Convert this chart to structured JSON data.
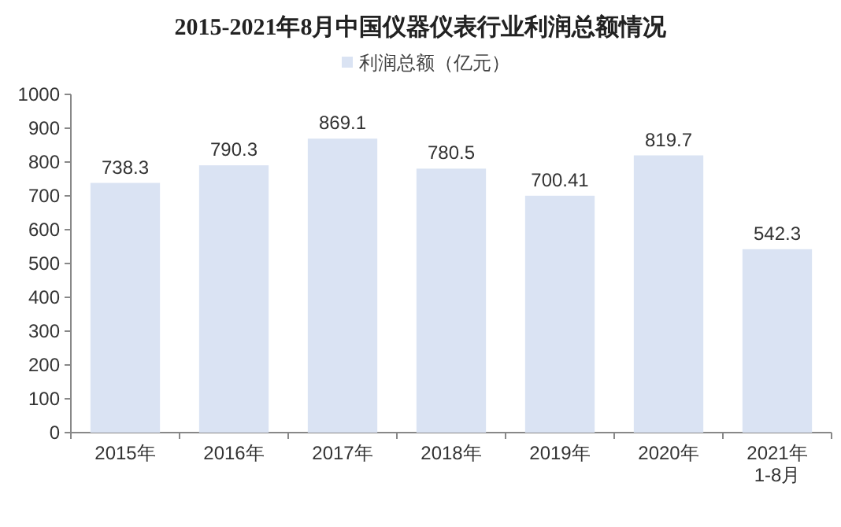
{
  "chart_data": {
    "type": "bar",
    "title": "2015-2021年8月中国仪器仪表行业利润总额情况",
    "categories": [
      "2015年",
      "2016年",
      "2017年",
      "2018年",
      "2019年",
      "2020年",
      "2021年\n1-8月"
    ],
    "series": [
      {
        "name": "利润总额（亿元）",
        "color": "#dae3f3",
        "values": [
          738.3,
          790.3,
          869.1,
          780.5,
          700.41,
          819.7,
          542.3
        ]
      }
    ],
    "ylim": [
      0,
      1000
    ],
    "yticks": [
      0,
      100,
      200,
      300,
      400,
      500,
      600,
      700,
      800,
      900,
      1000
    ],
    "data_labels": true,
    "legend": "top",
    "grid": false
  }
}
